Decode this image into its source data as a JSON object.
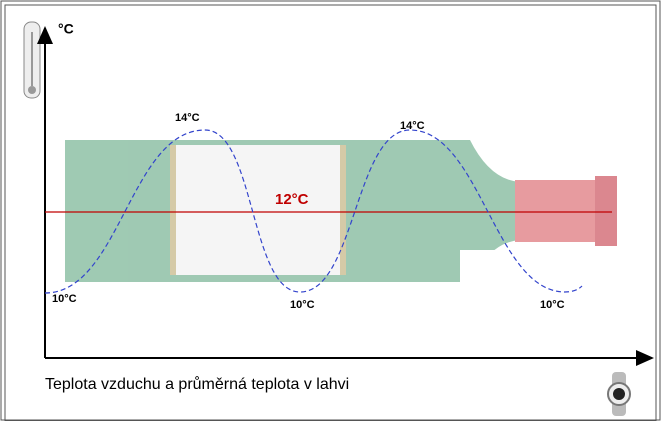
{
  "axis": {
    "y_unit": "°C"
  },
  "labels": {
    "max_1": "14°C",
    "max_2": "14°C",
    "mean": "12°C",
    "min_1": "10°C",
    "min_2": "10°C",
    "min_3": "10°C"
  },
  "caption": "Teplota vzduchu a průměrná teplota v lahvi"
}
